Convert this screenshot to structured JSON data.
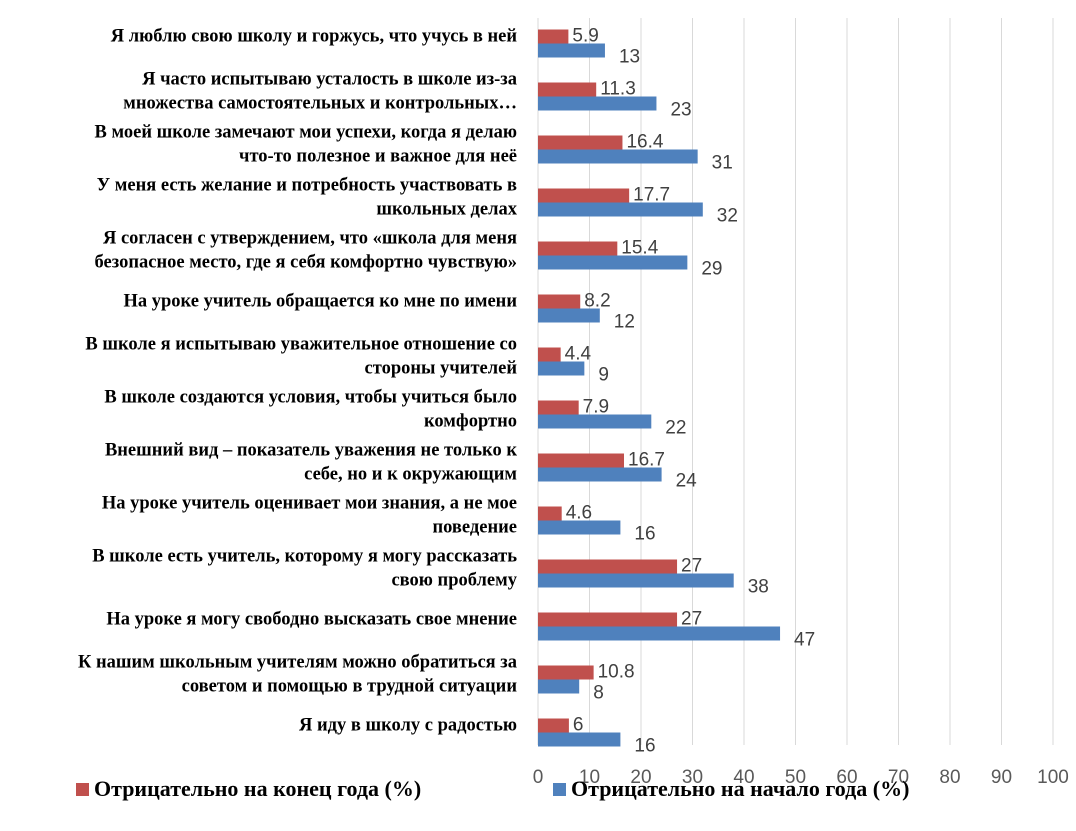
{
  "colors": {
    "end": "#c0504d",
    "start": "#4f81bd",
    "grid": "#d9d9d9"
  },
  "chart_data": {
    "type": "bar",
    "orientation": "horizontal",
    "title": "",
    "xlabel": "",
    "ylabel": "",
    "xlim": [
      0,
      100
    ],
    "x_ticks": [
      0,
      10,
      20,
      30,
      40,
      50,
      60,
      70,
      80,
      90,
      100
    ],
    "grid": true,
    "legend_position": "bottom",
    "categories": [
      [
        "Я люблю свою школу и горжусь, что учусь в ней"
      ],
      [
        "Я часто испытываю усталость в школе из-за",
        "множества самостоятельных и контрольных…"
      ],
      [
        "В моей школе замечают мои успехи, когда я делаю",
        "что-то полезное и важное для неё"
      ],
      [
        "У меня есть желание и потребность участвовать в",
        "школьных делах"
      ],
      [
        "Я согласен с утверждением, что «школа для меня",
        "безопасное место, где я себя комфортно чувствую»"
      ],
      [
        "На уроке учитель обращается ко мне по имени"
      ],
      [
        "В школе я испытываю уважительное отношение со",
        "стороны учителей"
      ],
      [
        "В школе создаются условия, чтобы учиться было",
        "комфортно"
      ],
      [
        "Внешний вид – показатель уважения не только к",
        "себе, но и к окружающим"
      ],
      [
        "На уроке учитель оценивает мои знания, а не мое",
        "поведение"
      ],
      [
        "В школе есть учитель, которому я могу рассказать",
        "свою проблему"
      ],
      [
        "На уроке я могу свободно высказать свое мнение"
      ],
      [
        "К нашим школьным учителям можно обратиться за",
        "советом и помощью в трудной ситуации"
      ],
      [
        "Я иду в школу с радостью"
      ]
    ],
    "series": [
      {
        "name": "Отрицательно на конец года (%)",
        "values": [
          5.9,
          11.3,
          16.4,
          17.7,
          15.4,
          8.2,
          4.4,
          7.9,
          16.7,
          4.6,
          27,
          27,
          10.8,
          6
        ],
        "labels": [
          "5.9",
          "11.3",
          "16.4",
          "17.7",
          "15.4",
          "8.2",
          "4.4",
          "7.9",
          "16.7",
          "4.6",
          "27",
          "27",
          "10.8",
          "6"
        ]
      },
      {
        "name": "Отрицательно на начало года (%)",
        "values": [
          13,
          23,
          31,
          32,
          29,
          12,
          9,
          22,
          24,
          16,
          38,
          47,
          8,
          16
        ],
        "labels": [
          "13",
          "23",
          "31",
          "32",
          "29",
          "12",
          "9",
          "22",
          "24",
          "16",
          "38",
          "47",
          "8",
          "16"
        ]
      }
    ]
  }
}
